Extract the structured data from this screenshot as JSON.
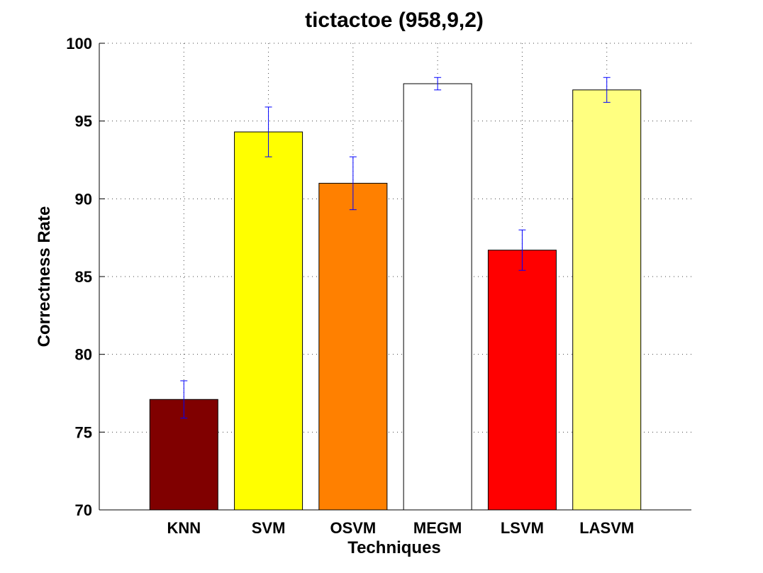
{
  "chart_data": {
    "type": "bar",
    "title": "tictactoe (958,9,2)",
    "xlabel": "Techniques",
    "ylabel": "Correctness Rate",
    "ylim": [
      70,
      100
    ],
    "yticks": [
      70,
      75,
      80,
      85,
      90,
      95,
      100
    ],
    "grid": true,
    "categories": [
      "KNN",
      "SVM",
      "OSVM",
      "MEGM",
      "LSVM",
      "LASVM"
    ],
    "values": [
      77.1,
      94.3,
      91.0,
      97.4,
      86.7,
      97.0
    ],
    "error": [
      1.2,
      1.6,
      1.7,
      0.4,
      1.3,
      0.8
    ],
    "bar_colors": [
      "#800000",
      "#ffff00",
      "#ff8000",
      "#ffffff",
      "#ff0000",
      "#ffff80"
    ],
    "error_color": "#0000ff"
  }
}
